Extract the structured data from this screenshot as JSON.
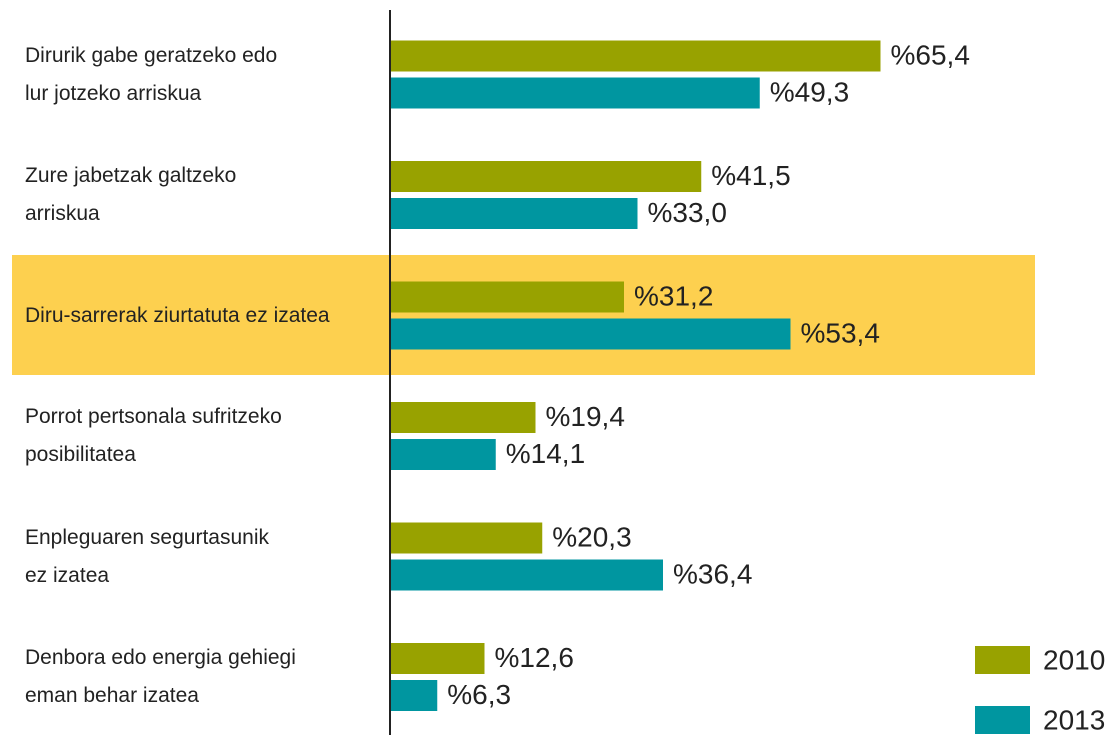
{
  "chart_data": {
    "type": "hbar",
    "categories": [
      "Dirurik gabe geratzeko edo\nlur jotzeko arriskua",
      "Zure jabetzak galtzeko\narriskua",
      "Diru-sarrerak ziurtatuta ez izatea",
      "Porrot pertsonala sufritzeko\nposibilitatea",
      "Enpleguaren segurtasunik\nez izatea",
      "Denbora edo energia gehiegi\neman behar izatea"
    ],
    "series": [
      {
        "name": "2010",
        "color": "#98a200",
        "values": [
          65.4,
          41.5,
          31.2,
          19.4,
          20.3,
          12.6
        ],
        "value_labels": [
          "%65,4",
          "%41,5",
          "%31,2",
          "%19,4",
          "%20,3",
          "%12,6"
        ]
      },
      {
        "name": "2013",
        "color": "#0096a0",
        "values": [
          49.3,
          33.0,
          53.4,
          14.1,
          36.4,
          6.3
        ],
        "value_labels": [
          "%49,3",
          "%33,0",
          "%53,4",
          "%14,1",
          "%36,4",
          "%6,3"
        ]
      }
    ],
    "highlight_category": 2,
    "highlight_color": "#fdd04f",
    "legend": "lower right"
  }
}
